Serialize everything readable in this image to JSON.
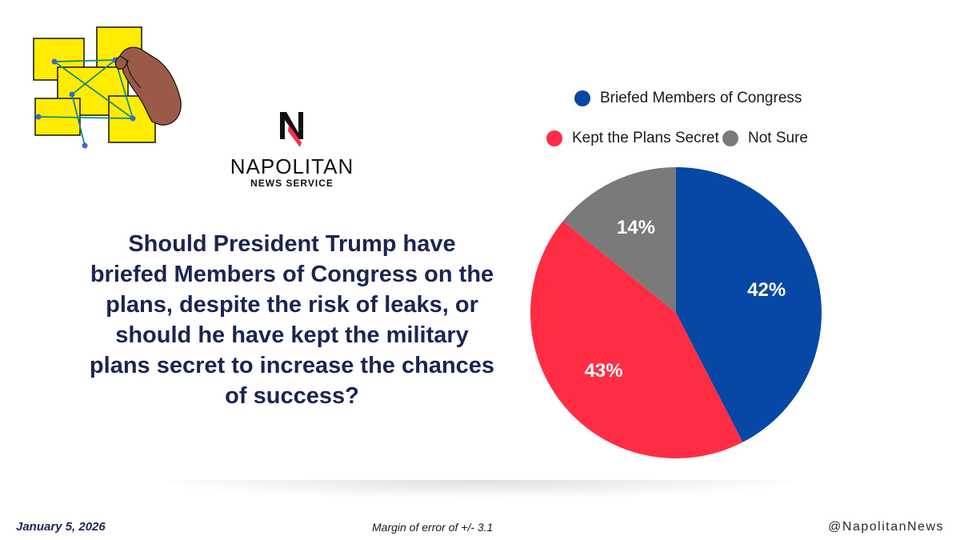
{
  "logo": {
    "name": "NAPOLITAN",
    "subtitle": "NEWS SERVICE"
  },
  "question": "Should President Trump have briefed Members of Congress on the plans, despite the risk of leaks, or should he have kept the military plans secret to increase the chances of success?",
  "chart_data": {
    "type": "pie",
    "title": "",
    "categories": [
      "Briefed Members of Congress",
      "Kept the Plans Secret",
      "Not Sure"
    ],
    "values": [
      42,
      43,
      14
    ],
    "labels": [
      "42%",
      "43%",
      "14%"
    ],
    "colors": [
      "#0747a6",
      "#ff2d44",
      "#7a7a7a"
    ],
    "legend_position": "top"
  },
  "footer": {
    "date": "January 5, 2026",
    "margin_of_error": "Margin of error of +/- 3.1",
    "handle": "@NapolitanNews"
  },
  "colors": {
    "text_primary": "#1b2552",
    "illustration_yellow": "#ffec00",
    "hand": "#9a5a47"
  },
  "icons": {
    "illustration": "hand-arranging-sticky-notes-icon",
    "logo_mark": "napolitan-n-logo-icon"
  }
}
